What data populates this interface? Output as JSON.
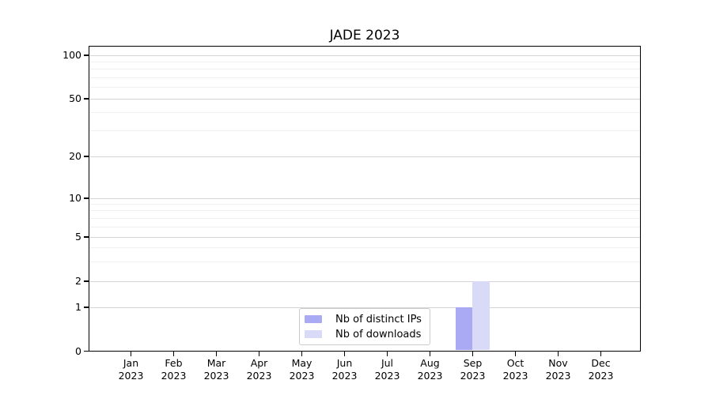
{
  "chart_data": {
    "type": "bar",
    "title": "JADE 2023",
    "year": "2023",
    "categories": [
      "Jan",
      "Feb",
      "Mar",
      "Apr",
      "May",
      "Jun",
      "Jul",
      "Aug",
      "Sep",
      "Oct",
      "Nov",
      "Dec"
    ],
    "series": [
      {
        "name": "Nb of distinct IPs",
        "color": "#a9a9f4",
        "values": [
          0,
          0,
          0,
          0,
          0,
          0,
          0,
          0,
          1,
          0,
          0,
          0
        ]
      },
      {
        "name": "Nb of downloads",
        "color": "#d9d9f8",
        "values": [
          0,
          0,
          0,
          0,
          0,
          0,
          0,
          0,
          2,
          0,
          0,
          0
        ]
      }
    ],
    "y_axis": {
      "ticks": [
        0,
        1,
        2,
        5,
        10,
        20,
        50,
        100
      ],
      "minor_ticks": [
        3,
        4,
        6,
        7,
        8,
        9,
        30,
        40,
        60,
        70,
        80,
        90
      ],
      "scale": "log-like",
      "range": [
        0,
        120
      ]
    },
    "grid": {
      "major_color": "#d4d4d4",
      "minor_color": "#f0f0f0"
    },
    "legend": {
      "position": "bottom-center-inside"
    }
  }
}
